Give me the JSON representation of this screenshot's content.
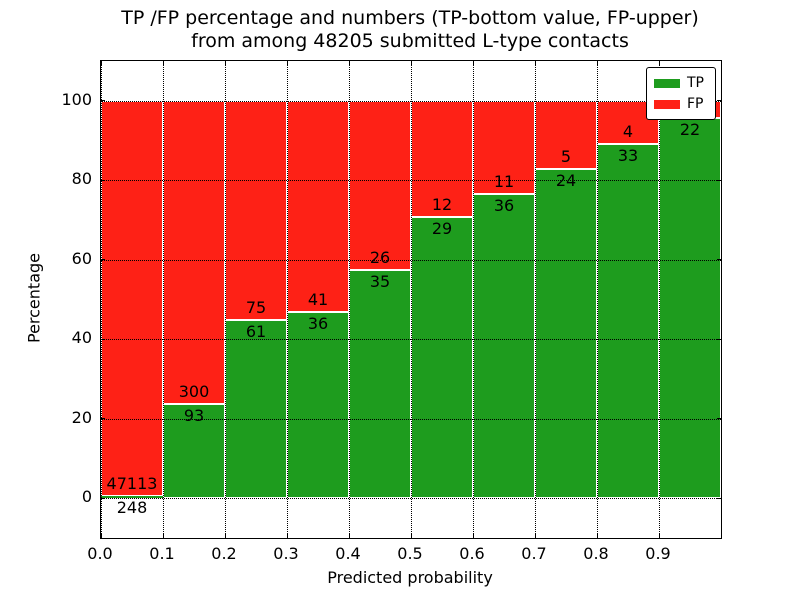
{
  "figure": {
    "title_line1": "TP /FP percentage and numbers (TP-bottom value, FP-upper)",
    "title_line2": "from among 48205 submitted L-type contacts",
    "xlabel": "Predicted probability",
    "ylabel": "Percentage",
    "background_color": "#ffffff"
  },
  "chart_data": {
    "type": "bar",
    "stacked": true,
    "title": "TP /FP percentage and numbers (TP-bottom value, FP-upper) from among 48205 submitted L-type contacts",
    "xlabel": "Predicted probability",
    "ylabel": "Percentage",
    "total_submitted": 48205,
    "xlim": [
      0.0,
      1.0
    ],
    "ylim": [
      -10,
      110
    ],
    "x_ticks": [
      "0.0",
      "0.1",
      "0.2",
      "0.3",
      "0.4",
      "0.5",
      "0.6",
      "0.7",
      "0.8",
      "0.9"
    ],
    "y_ticks": [
      0,
      20,
      40,
      60,
      80,
      100
    ],
    "grid": true,
    "grid_style": "dotted",
    "legend_position": "upper-right",
    "legend": [
      {
        "label": "TP",
        "color": "#1e9c1e"
      },
      {
        "label": "FP",
        "color": "#fe2116"
      }
    ],
    "colors": {
      "tp": "#1e9c1e",
      "fp": "#fe2116",
      "bar_edge": "#ffffff"
    },
    "bar_width": 0.1,
    "bars": [
      {
        "x_range": [
          0.0,
          0.1
        ],
        "tp_pct": 0.52,
        "fp_pct": 99.48,
        "tp_label": "248",
        "fp_label": "47113"
      },
      {
        "x_range": [
          0.1,
          0.2
        ],
        "tp_pct": 23.7,
        "fp_pct": 76.3,
        "tp_label": "93",
        "fp_label": "300"
      },
      {
        "x_range": [
          0.2,
          0.3
        ],
        "tp_pct": 44.9,
        "fp_pct": 55.1,
        "tp_label": "61",
        "fp_label": "75"
      },
      {
        "x_range": [
          0.3,
          0.4
        ],
        "tp_pct": 46.8,
        "fp_pct": 53.2,
        "tp_label": "36",
        "fp_label": "41"
      },
      {
        "x_range": [
          0.4,
          0.5
        ],
        "tp_pct": 57.4,
        "fp_pct": 42.6,
        "tp_label": "35",
        "fp_label": "26"
      },
      {
        "x_range": [
          0.5,
          0.6
        ],
        "tp_pct": 70.7,
        "fp_pct": 29.3,
        "tp_label": "29",
        "fp_label": "12"
      },
      {
        "x_range": [
          0.6,
          0.7
        ],
        "tp_pct": 76.6,
        "fp_pct": 23.4,
        "tp_label": "36",
        "fp_label": "11"
      },
      {
        "x_range": [
          0.7,
          0.8
        ],
        "tp_pct": 82.8,
        "fp_pct": 17.2,
        "tp_label": "24",
        "fp_label": "5"
      },
      {
        "x_range": [
          0.8,
          0.9
        ],
        "tp_pct": 89.2,
        "fp_pct": 10.8,
        "tp_label": "33",
        "fp_label": "4"
      },
      {
        "x_range": [
          0.9,
          1.0
        ],
        "tp_pct": 95.7,
        "fp_pct": 4.3,
        "tp_label": "22",
        "fp_label": ""
      }
    ]
  }
}
